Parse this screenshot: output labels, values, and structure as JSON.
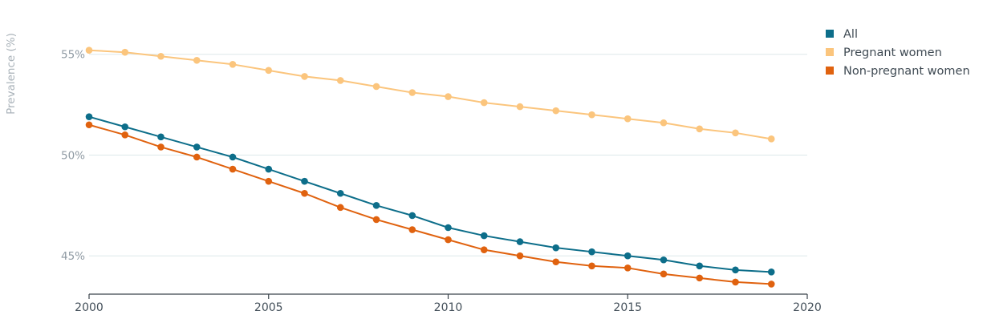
{
  "chart_data": {
    "type": "line",
    "title": "",
    "xlabel": "",
    "ylabel": "Prevalence (%)",
    "x": [
      2000,
      2001,
      2002,
      2003,
      2004,
      2005,
      2006,
      2007,
      2008,
      2009,
      2010,
      2011,
      2012,
      2013,
      2014,
      2015,
      2016,
      2017,
      2018,
      2019
    ],
    "xlim": [
      2000,
      2020
    ],
    "ylim": [
      43.1,
      56.5
    ],
    "x_ticks": [
      "2000",
      "2005",
      "2010",
      "2015",
      "2020"
    ],
    "y_ticks": [
      "45%",
      "50%",
      "55%"
    ],
    "grid": "horizontal",
    "legend_position": "top-right",
    "series": [
      {
        "name": "All",
        "color": "#0d6e8a",
        "values": [
          51.9,
          51.4,
          50.9,
          50.4,
          49.9,
          49.3,
          48.7,
          48.1,
          47.5,
          47.0,
          46.4,
          46.0,
          45.7,
          45.4,
          45.2,
          45.0,
          44.8,
          44.5,
          44.3,
          44.2
        ]
      },
      {
        "name": "Pregnant women",
        "color": "#fbc57d",
        "values": [
          55.2,
          55.1,
          54.9,
          54.7,
          54.5,
          54.2,
          53.9,
          53.7,
          53.4,
          53.1,
          52.9,
          52.6,
          52.4,
          52.2,
          52.0,
          51.8,
          51.6,
          51.3,
          51.1,
          50.8
        ]
      },
      {
        "name": "Non-pregnant women",
        "color": "#e0620f",
        "values": [
          51.5,
          51.0,
          50.4,
          49.9,
          49.3,
          48.7,
          48.1,
          47.4,
          46.8,
          46.3,
          45.8,
          45.3,
          45.0,
          44.7,
          44.5,
          44.4,
          44.1,
          43.9,
          43.7,
          43.6
        ]
      }
    ]
  }
}
